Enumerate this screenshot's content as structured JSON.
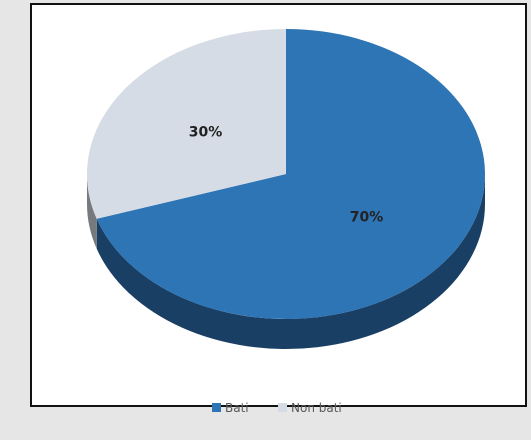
{
  "chart_data": {
    "type": "pie",
    "style": "3d",
    "categories": [
      "Bati",
      "Non bati"
    ],
    "values": [
      70,
      30
    ],
    "data_labels": [
      "70%",
      "30%"
    ],
    "colors": [
      "#2e75b6",
      "#d6dce5"
    ],
    "legend": {
      "position": "bottom",
      "items": [
        {
          "label": "Bati",
          "color": "#2e75b6"
        },
        {
          "label": "Non bati",
          "color": "#d6dce5"
        }
      ]
    }
  }
}
